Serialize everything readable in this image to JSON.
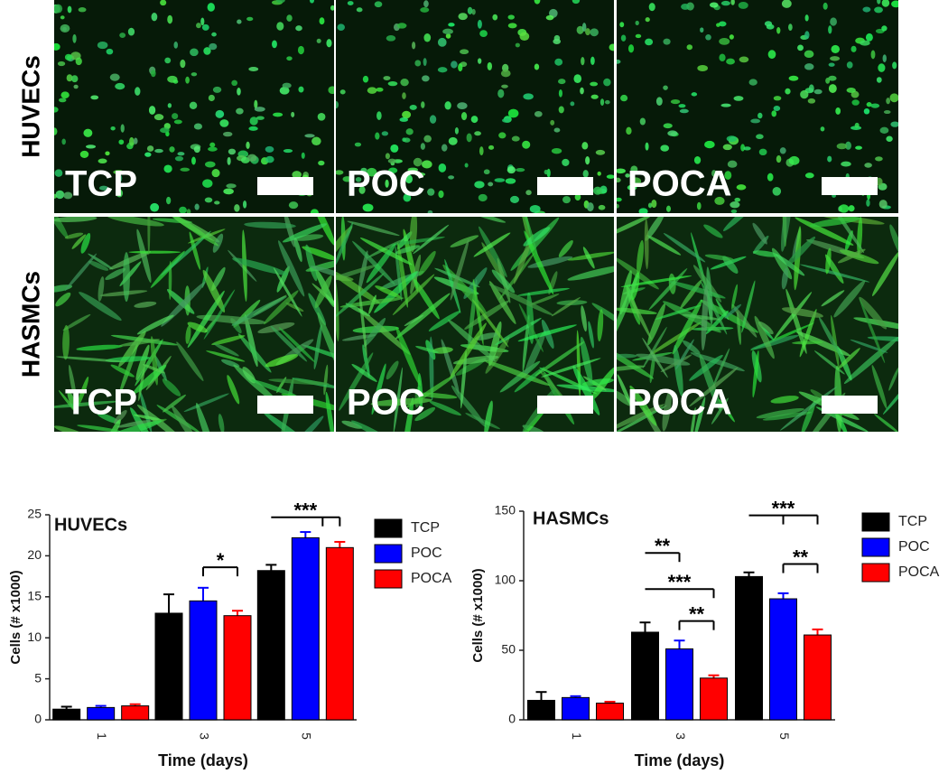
{
  "image_panel": {
    "row_labels": [
      "HUVECs",
      "HASMCs"
    ],
    "panel_labels": [
      [
        "TCP",
        "POC",
        "POCA"
      ],
      [
        "TCP",
        "POC",
        "POCA"
      ]
    ]
  },
  "chart_data": [
    {
      "type": "bar",
      "title": "HUVECs",
      "x_label": "Time (days)",
      "y_label": "Cells (# x1000)",
      "categories": [
        "1",
        "3",
        "5"
      ],
      "series": [
        {
          "name": "TCP",
          "color": "#000000",
          "values": [
            1.3,
            13,
            18.2
          ],
          "errors": [
            0.3,
            2.3,
            0.7
          ]
        },
        {
          "name": "POC",
          "color": "#0000ff",
          "values": [
            1.5,
            14.5,
            22.2
          ],
          "errors": [
            0.2,
            1.6,
            0.7
          ]
        },
        {
          "name": "POCA",
          "color": "#ff0000",
          "values": [
            1.7,
            12.7,
            21
          ],
          "errors": [
            0.2,
            0.6,
            0.7
          ]
        }
      ],
      "ylim": [
        0,
        25
      ],
      "yticks": [
        0,
        5,
        10,
        15,
        20,
        25
      ],
      "annotations": [
        "*",
        "***"
      ]
    },
    {
      "type": "bar",
      "title": "HASMCs",
      "x_label": "Time (days)",
      "y_label": "Cells (# x1000)",
      "categories": [
        "1",
        "3",
        "5"
      ],
      "series": [
        {
          "name": "TCP",
          "color": "#000000",
          "values": [
            14,
            63,
            103
          ],
          "errors": [
            6,
            7,
            3
          ]
        },
        {
          "name": "POC",
          "color": "#0000ff",
          "values": [
            16,
            51,
            87
          ],
          "errors": [
            1,
            6,
            4
          ]
        },
        {
          "name": "POCA",
          "color": "#ff0000",
          "values": [
            12,
            30,
            61
          ],
          "errors": [
            1,
            2,
            4
          ]
        }
      ],
      "ylim": [
        0,
        150
      ],
      "yticks": [
        0,
        50,
        100,
        150
      ],
      "annotations": [
        "**",
        "***",
        "**",
        "***",
        "**"
      ]
    }
  ]
}
